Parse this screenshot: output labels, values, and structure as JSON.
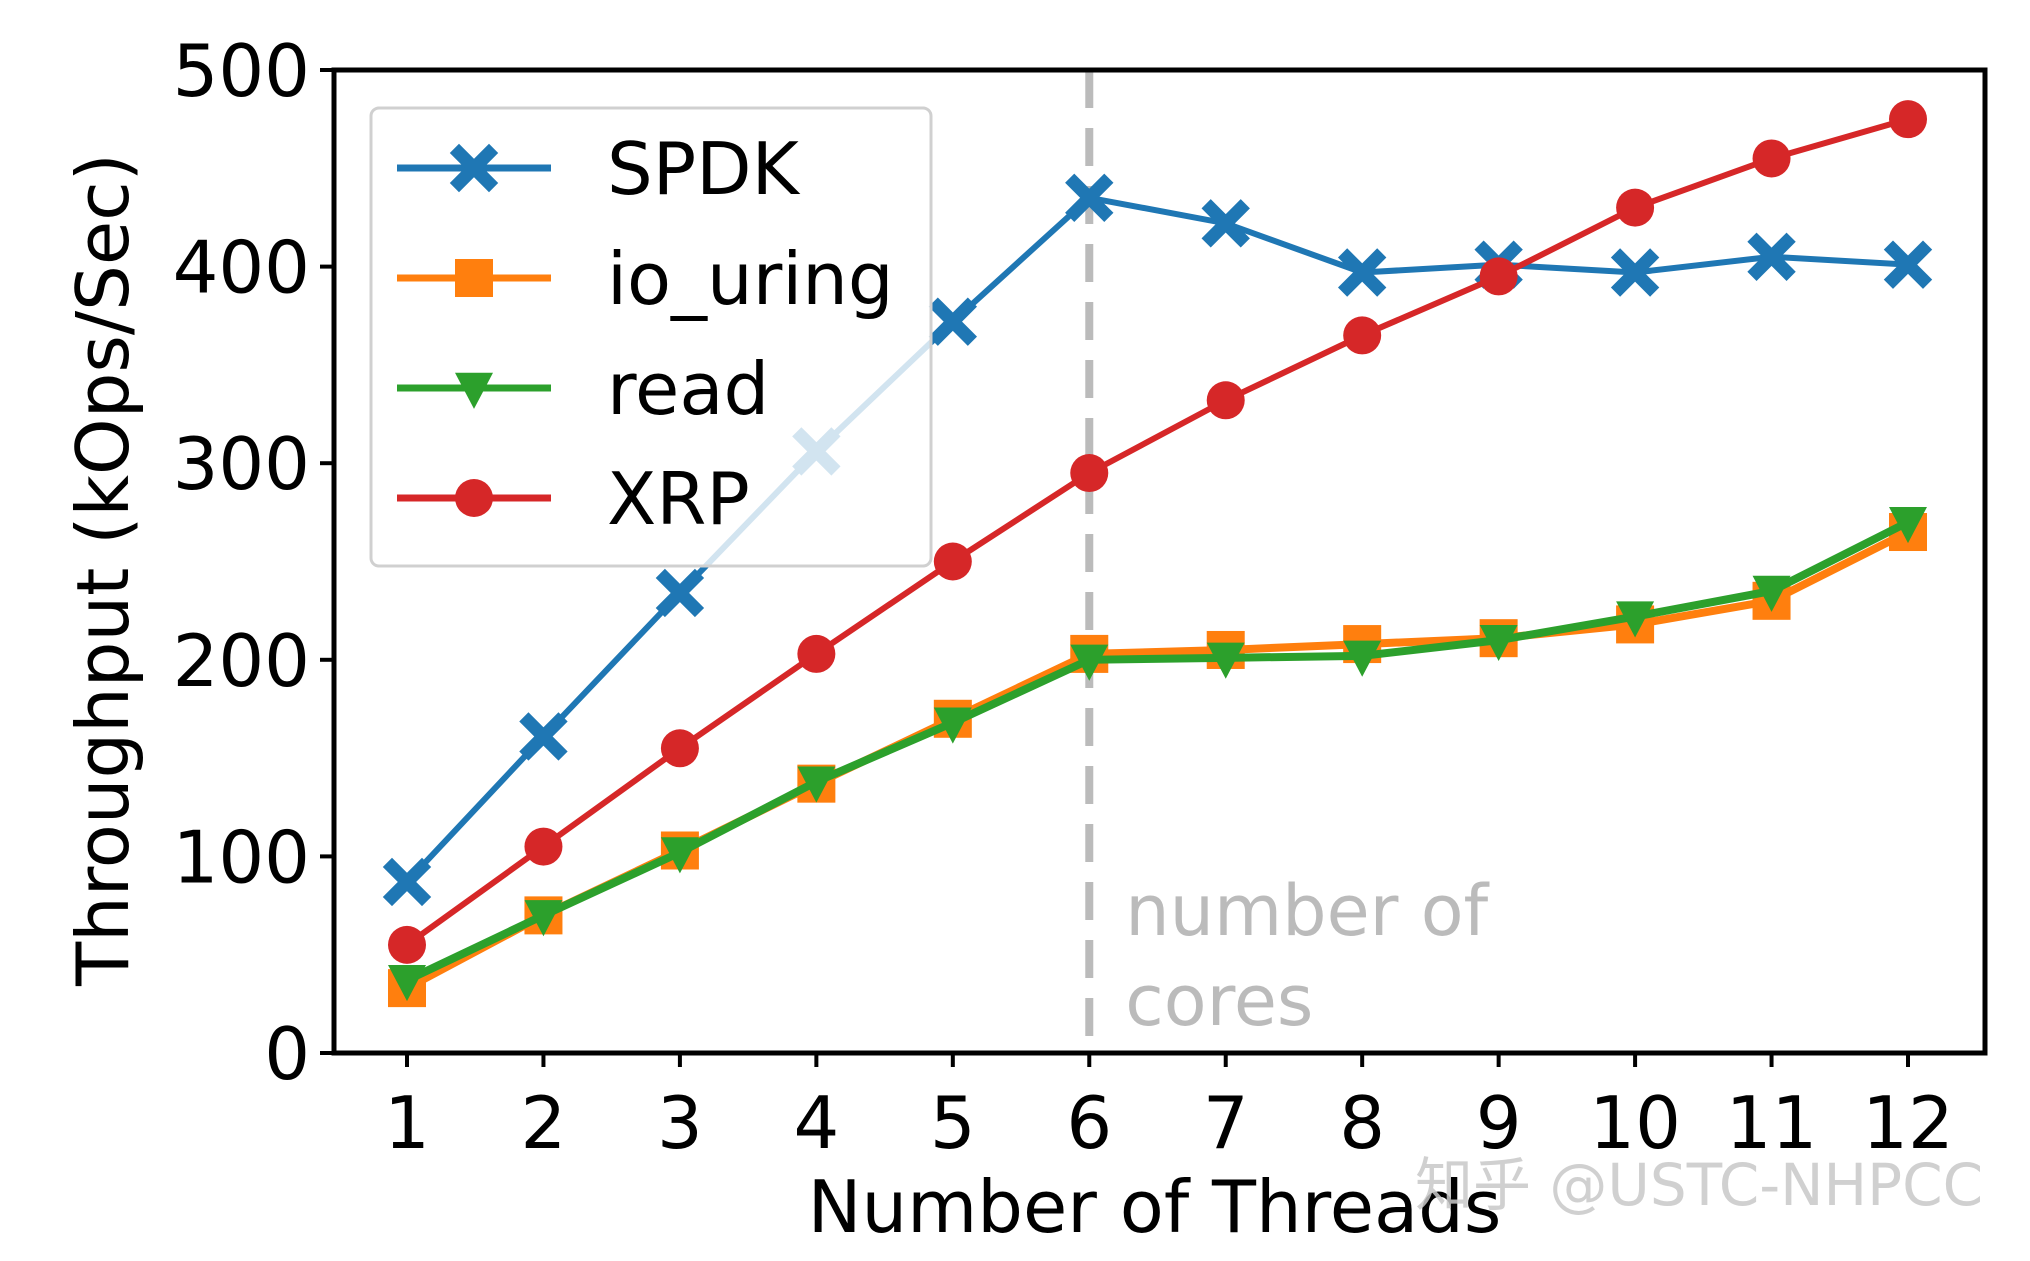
{
  "chart_data": {
    "type": "line",
    "xlabel": "Number of Threads",
    "ylabel": "Throughput (kOps/Sec)",
    "x": [
      1,
      2,
      3,
      4,
      5,
      6,
      7,
      8,
      9,
      10,
      11,
      12
    ],
    "ylim": [
      0,
      500
    ],
    "yticks": [
      0,
      100,
      200,
      300,
      400,
      500
    ],
    "grid": false,
    "legend_position": "top-left",
    "series": [
      {
        "name": "SPDK",
        "color": "#1f77b4",
        "marker": "X",
        "values": [
          87,
          161,
          234,
          306,
          372,
          435,
          422,
          397,
          401,
          397,
          405,
          401
        ]
      },
      {
        "name": "io_uring",
        "color": "#ff7f0e",
        "marker": "square",
        "values": [
          33,
          70,
          103,
          137,
          170,
          203,
          205,
          208,
          211,
          218,
          230,
          265
        ]
      },
      {
        "name": "read",
        "color": "#2ca02c",
        "marker": "triangle-down",
        "values": [
          37,
          70,
          102,
          138,
          168,
          200,
          201,
          202,
          210,
          222,
          235,
          270
        ]
      },
      {
        "name": "XRP",
        "color": "#d62728",
        "marker": "circle",
        "values": [
          55,
          105,
          155,
          203,
          250,
          295,
          332,
          365,
          395,
          430,
          455,
          475
        ]
      }
    ],
    "annotations": [
      {
        "type": "vline",
        "x": 6,
        "color": "#bbbbbb",
        "style": "dashed",
        "text": [
          "number of",
          "cores"
        ]
      }
    ]
  },
  "watermark": "知乎 @USTC-NHPCC"
}
